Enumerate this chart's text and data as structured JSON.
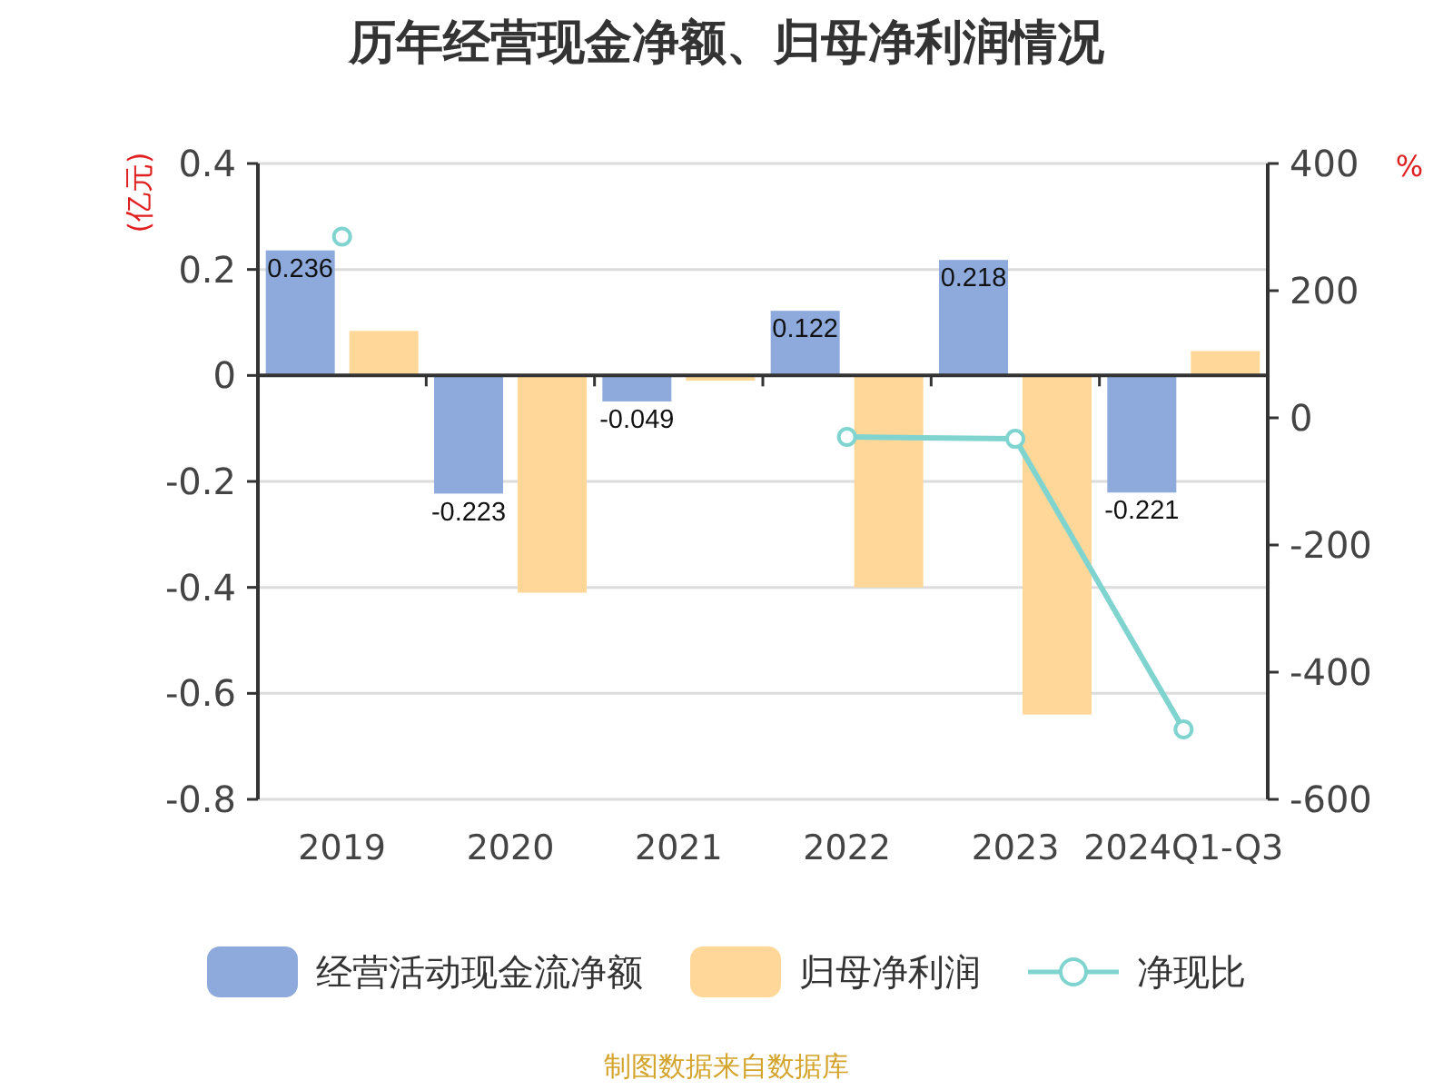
{
  "chart_data": {
    "type": "bar",
    "title": "历年经营现金净额、归母净利润情况",
    "ylabel": "(亿元)",
    "y2label": "%",
    "categories": [
      "2019",
      "2020",
      "2021",
      "2022",
      "2023",
      "2024Q1-Q3"
    ],
    "series": [
      {
        "name": "经营活动现金流净额",
        "color": "#8eaadc",
        "values": [
          0.236,
          -0.223,
          -0.049,
          0.122,
          0.218,
          -0.221
        ],
        "value_labels": [
          "0.236",
          "-0.223",
          "-0.049",
          "0.122",
          "0.218",
          "-0.221"
        ]
      },
      {
        "name": "归母净利润",
        "color": "#ffd899",
        "values": [
          0.084,
          -0.41,
          -0.01,
          -0.4,
          -0.64,
          0.046
        ]
      },
      {
        "name": "净现比",
        "type": "line",
        "axis": "y2",
        "color": "#80d4d0",
        "marker": "circle",
        "values": [
          285,
          null,
          null,
          -30,
          -33,
          -490
        ]
      }
    ],
    "ylim": [
      -0.8,
      0.4
    ],
    "yticks": [
      -0.8,
      -0.6,
      -0.4,
      -0.2,
      0,
      0.2,
      0.4
    ],
    "y2lim": [
      -600,
      400
    ],
    "y2ticks": [
      -600,
      -400,
      -200,
      0,
      200,
      400
    ],
    "grid": "y",
    "legend": "bottom",
    "annotations": [
      "制图数据来自数据库"
    ]
  }
}
